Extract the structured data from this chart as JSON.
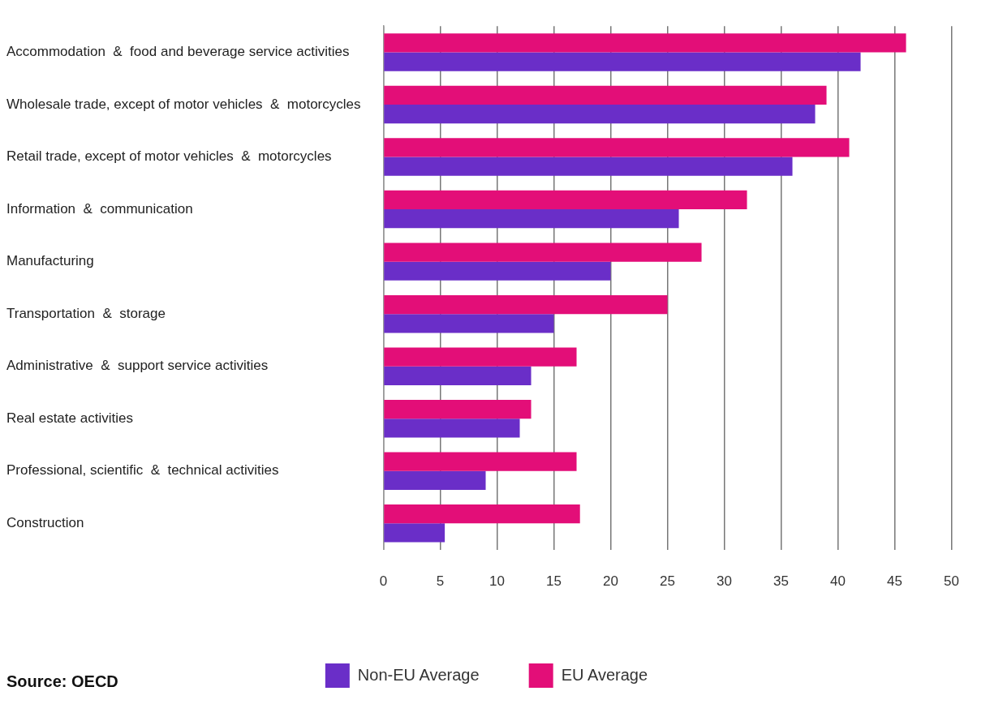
{
  "chart_data": {
    "type": "bar",
    "orientation": "horizontal",
    "categories": [
      "Accommodation  &  food and beverage service activities",
      "Wholesale trade, except of motor vehicles  &  motorcycles",
      "Retail trade, except of motor vehicles  &  motorcycles",
      "Information  &  communication",
      "Manufacturing",
      "Transportation  &  storage",
      "Administrative  &  support service activities",
      "Real estate activities",
      "Professional, scientific  &  technical activities",
      "Construction"
    ],
    "series": [
      {
        "name": "EU Average",
        "color": "#e30e78",
        "values": [
          46,
          39,
          41,
          32,
          28,
          25,
          17,
          13,
          17,
          17.3
        ]
      },
      {
        "name": "Non-EU Average",
        "color": "#6a2ec8",
        "values": [
          42,
          38,
          36,
          26,
          20,
          15,
          13,
          12,
          9,
          5.4
        ]
      }
    ],
    "xlim": [
      0,
      50
    ],
    "xticks": [
      0,
      5,
      10,
      15,
      20,
      25,
      30,
      35,
      40,
      45,
      50
    ],
    "grid": "x",
    "legend": "bottom",
    "annotations": [
      "Source:  OECD"
    ]
  }
}
